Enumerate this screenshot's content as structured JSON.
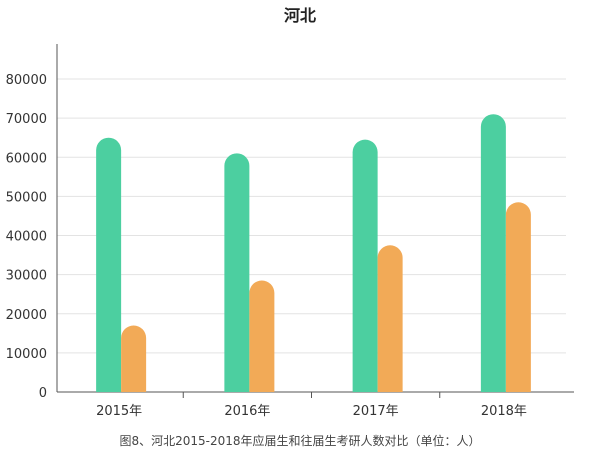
{
  "chart_data": {
    "type": "bar",
    "title": "河北",
    "caption": "图8、河北2015-2018年应届生和往届生考研人数对比（单位：人）",
    "categories": [
      "2015年",
      "2016年",
      "2017年",
      "2018年"
    ],
    "series": [
      {
        "values": [
          65000,
          61000,
          64500,
          71000
        ]
      },
      {
        "values": [
          17000,
          28500,
          37500,
          48500
        ]
      }
    ],
    "colors": [
      "#4ccfa0",
      "#f2aa57"
    ],
    "ylim": [
      0,
      80000
    ],
    "yticks": [
      0,
      10000,
      20000,
      30000,
      40000,
      50000,
      60000,
      70000,
      80000
    ],
    "grid": true,
    "legend": "none",
    "xlabel": "",
    "ylabel": ""
  }
}
